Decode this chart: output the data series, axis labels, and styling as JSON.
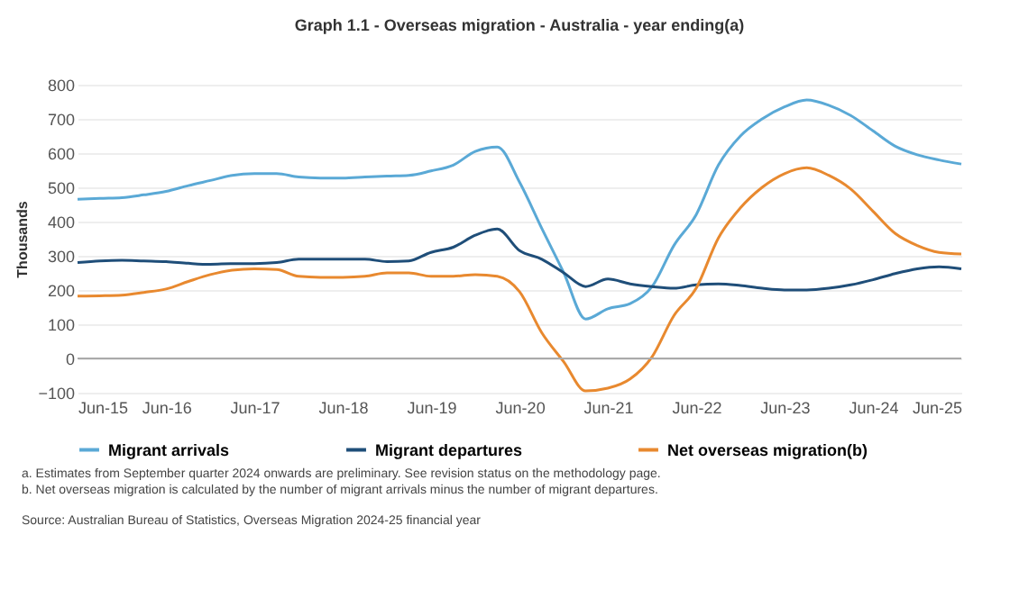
{
  "chart_data": {
    "type": "line",
    "title": "Graph 1.1 - Overseas migration - Australia - year ending(a)",
    "ylabel": "Thousands",
    "x": [
      "2015-06",
      "2015-09",
      "2015-12",
      "2016-03",
      "2016-06",
      "2016-09",
      "2016-12",
      "2017-03",
      "2017-06",
      "2017-09",
      "2017-12",
      "2018-03",
      "2018-06",
      "2018-09",
      "2018-12",
      "2019-03",
      "2019-06",
      "2019-09",
      "2019-12",
      "2020-03",
      "2020-06",
      "2020-09",
      "2020-12",
      "2021-03",
      "2021-06",
      "2021-09",
      "2021-12",
      "2022-03",
      "2022-06",
      "2022-09",
      "2022-12",
      "2023-03",
      "2023-06",
      "2023-09",
      "2023-12",
      "2024-03",
      "2024-06",
      "2024-09",
      "2024-12",
      "2025-03",
      "2025-06"
    ],
    "series": [
      {
        "name": "Migrant arrivals",
        "color": "#5aa9d6",
        "values": [
          465,
          468,
          470,
          478,
          488,
          505,
          520,
          535,
          540,
          540,
          530,
          527,
          527,
          530,
          533,
          535,
          548,
          565,
          605,
          618,
          515,
          380,
          250,
          115,
          145,
          160,
          210,
          330,
          420,
          565,
          650,
          700,
          735,
          755,
          740,
          710,
          665,
          620,
          595,
          580,
          568
        ]
      },
      {
        "name": "Migrant departures",
        "color": "#1f4e79",
        "values": [
          280,
          285,
          287,
          285,
          283,
          278,
          275,
          277,
          277,
          280,
          290,
          290,
          290,
          290,
          283,
          285,
          310,
          325,
          360,
          378,
          315,
          290,
          250,
          210,
          232,
          218,
          210,
          205,
          215,
          218,
          213,
          205,
          200,
          200,
          205,
          215,
          230,
          248,
          262,
          268,
          262
        ]
      },
      {
        "name": "Net overseas migration(b)",
        "color": "#e8892f",
        "values": [
          182,
          183,
          185,
          193,
          203,
          225,
          245,
          258,
          262,
          260,
          240,
          237,
          237,
          240,
          250,
          250,
          240,
          240,
          245,
          240,
          195,
          75,
          -10,
          -95,
          -87,
          -60,
          5,
          125,
          205,
          352,
          440,
          500,
          540,
          557,
          535,
          495,
          430,
          365,
          330,
          310,
          305
        ]
      }
    ],
    "xlim": [
      "2015-06",
      "2025-06"
    ],
    "xticks": [
      {
        "value": "2015-06",
        "label": "Jun-15"
      },
      {
        "value": "2016-06",
        "label": "Jun-16"
      },
      {
        "value": "2017-06",
        "label": "Jun-17"
      },
      {
        "value": "2018-06",
        "label": "Jun-18"
      },
      {
        "value": "2019-06",
        "label": "Jun-19"
      },
      {
        "value": "2020-06",
        "label": "Jun-20"
      },
      {
        "value": "2021-06",
        "label": "Jun-21"
      },
      {
        "value": "2022-06",
        "label": "Jun-22"
      },
      {
        "value": "2023-06",
        "label": "Jun-23"
      },
      {
        "value": "2024-06",
        "label": "Jun-24"
      },
      {
        "value": "2025-06",
        "label": "Jun-25"
      }
    ],
    "ylim": [
      -100,
      800
    ],
    "yticks": [
      -100,
      0,
      100,
      200,
      300,
      400,
      500,
      600,
      700,
      800
    ],
    "grid": "y",
    "legend": "bottom",
    "ref_lines": [
      {
        "axis": "y",
        "value": 0,
        "color": "#aaaaaa"
      }
    ],
    "annotations": [
      "a. Estimates from September quarter 2024 onwards are preliminary. See revision status on the methodology page.",
      "b. Net overseas migration is calculated by the number of migrant arrivals minus the number of migrant departures.",
      "Source: Australian Bureau of Statistics, Overseas Migration 2024-25 financial year"
    ]
  }
}
